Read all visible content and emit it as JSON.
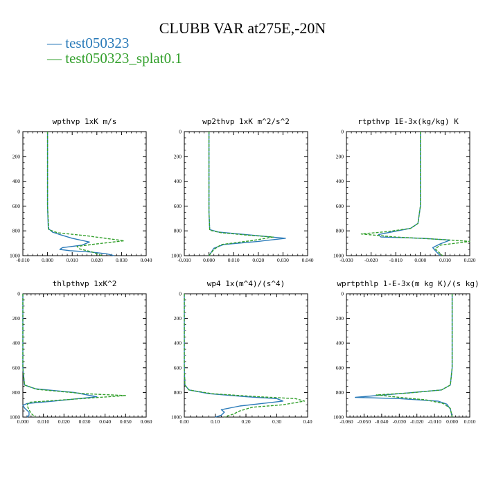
{
  "title": "CLUBB VAR at275E,-20N",
  "legend": [
    {
      "label": "test050323",
      "color": "#2b7bb9",
      "dash": false
    },
    {
      "label": "test050323_splat0.1",
      "color": "#33a02c",
      "dash": true
    }
  ],
  "chart_data": [
    {
      "type": "line",
      "title": "wpthvp  1xK m/s",
      "xlim": [
        -0.01,
        0.04
      ],
      "ylim": [
        0,
        1000
      ],
      "xticks": [
        "-0.010",
        "0.000",
        "0.010",
        "0.020",
        "0.030",
        "0.040"
      ],
      "yticks": [
        "0",
        "200",
        "400",
        "600",
        "800",
        "1000"
      ],
      "series": [
        {
          "name": "test050323",
          "x": [
            0,
            0,
            0.0003,
            0.002,
            0.005,
            0.01,
            0.017,
            0.014,
            0.006,
            0.005,
            0.009,
            0.017,
            0.024,
            0.027
          ],
          "y": [
            0,
            600,
            780,
            810,
            830,
            860,
            890,
            915,
            935,
            950,
            960,
            970,
            985,
            1000
          ]
        },
        {
          "name": "test050323_splat0.1",
          "x": [
            0,
            0,
            0.0005,
            0.004,
            0.016,
            0.031,
            0.02,
            0.012,
            0.013,
            0.018,
            0.022
          ],
          "y": [
            0,
            600,
            790,
            815,
            840,
            880,
            905,
            925,
            945,
            970,
            1000
          ]
        }
      ]
    },
    {
      "type": "line",
      "title": "wp2thvp  1xK m^2/s^2",
      "xlim": [
        -0.01,
        0.04
      ],
      "ylim": [
        0,
        1000
      ],
      "xticks": [
        "-0.010",
        "0.000",
        "0.010",
        "0.020",
        "0.030",
        "0.040"
      ],
      "yticks": [
        "0",
        "200",
        "400",
        "600",
        "800",
        "1000"
      ],
      "series": [
        {
          "name": "test050323",
          "x": [
            0,
            0,
            0.0003,
            0.004,
            0.015,
            0.031,
            0.02,
            0.006,
            0.002,
            0.001,
            0.0
          ],
          "y": [
            0,
            650,
            790,
            810,
            830,
            860,
            885,
            910,
            940,
            970,
            1000
          ]
        },
        {
          "name": "test050323_splat0.1",
          "x": [
            0,
            0,
            0.0003,
            0.005,
            0.016,
            0.026,
            0.017,
            0.005,
            0.002,
            0.0
          ],
          "y": [
            0,
            650,
            795,
            815,
            835,
            850,
            880,
            910,
            950,
            1000
          ]
        }
      ]
    },
    {
      "type": "line",
      "title": "rtpthvp  1E-3x(kg/kg) K",
      "xlim": [
        -0.03,
        0.02
      ],
      "ylim": [
        0,
        1000
      ],
      "xticks": [
        "-0.030",
        "-0.020",
        "-0.010",
        "0.000",
        "0.010",
        "0.020"
      ],
      "yticks": [
        "0",
        "200",
        "400",
        "600",
        "800",
        "1000"
      ],
      "series": [
        {
          "name": "test050323",
          "x": [
            0,
            0,
            -0.001,
            -0.004,
            -0.012,
            -0.017,
            -0.016,
            0.001,
            0.012,
            0.008,
            0.005,
            0.006,
            0.008
          ],
          "y": [
            0,
            600,
            740,
            780,
            810,
            830,
            850,
            860,
            875,
            905,
            935,
            960,
            1000
          ]
        },
        {
          "name": "test050323_splat0.1",
          "x": [
            0,
            0,
            -0.001,
            -0.004,
            -0.013,
            -0.024,
            -0.01,
            0.009,
            0.02,
            0.008,
            0.006,
            0.007,
            0.009
          ],
          "y": [
            0,
            600,
            740,
            780,
            805,
            825,
            850,
            870,
            885,
            915,
            945,
            965,
            1000
          ]
        }
      ]
    },
    {
      "type": "line",
      "title": "thlpthvp  1xK^2",
      "xlim": [
        0,
        0.06
      ],
      "ylim": [
        0,
        1000
      ],
      "xticks": [
        "0.000",
        "0.010",
        "0.020",
        "0.030",
        "0.040",
        "0.050",
        "0.060"
      ],
      "yticks": [
        "0",
        "200",
        "400",
        "600",
        "800",
        "1000"
      ],
      "series": [
        {
          "name": "test050323",
          "x": [
            0,
            0,
            0.0008,
            0.006,
            0.025,
            0.036,
            0.015,
            0.002,
            0.0,
            0.001,
            0.003,
            0.003,
            0.002
          ],
          "y": [
            0,
            600,
            740,
            770,
            800,
            835,
            870,
            890,
            905,
            930,
            960,
            985,
            1000
          ]
        },
        {
          "name": "test050323_splat0.1",
          "x": [
            0,
            0,
            0.0008,
            0.007,
            0.03,
            0.05,
            0.02,
            0.003,
            0.002,
            0.003,
            0.004,
            0.006
          ],
          "y": [
            0,
            600,
            740,
            775,
            810,
            825,
            860,
            880,
            905,
            940,
            970,
            1000
          ]
        }
      ]
    },
    {
      "type": "line",
      "title": "wp4  1x(m^4)/(s^4)",
      "xlim": [
        0,
        0.4
      ],
      "ylim": [
        0,
        1000
      ],
      "xticks": [
        "0.00",
        "0.10",
        "0.20",
        "0.30",
        "0.40"
      ],
      "yticks": [
        "0",
        "200",
        "400",
        "600",
        "800",
        "1000"
      ],
      "series": [
        {
          "name": "test050323",
          "x": [
            0,
            0,
            0.002,
            0.015,
            0.08,
            0.2,
            0.3,
            0.32,
            0.18,
            0.12,
            0.13,
            0.12,
            0.1
          ],
          "y": [
            0,
            600,
            740,
            780,
            810,
            835,
            850,
            870,
            910,
            940,
            960,
            985,
            1000
          ]
        },
        {
          "name": "test050323_splat0.1",
          "x": [
            0,
            0,
            0.002,
            0.015,
            0.09,
            0.24,
            0.36,
            0.39,
            0.32,
            0.22,
            0.18,
            0.16,
            0.13
          ],
          "y": [
            0,
            600,
            740,
            780,
            810,
            835,
            850,
            870,
            900,
            920,
            950,
            975,
            1000
          ]
        }
      ]
    },
    {
      "type": "line",
      "title": "wprtpthlp  1-E-3x(m kg K)/(s kg)",
      "xlim": [
        -0.06,
        0.01
      ],
      "ylim": [
        0,
        1000
      ],
      "xticks": [
        "-0.060",
        "-0.050",
        "-0.040",
        "-0.030",
        "-0.020",
        "-0.010",
        "0.000",
        "0.010"
      ],
      "yticks": [
        "0",
        "200",
        "400",
        "600",
        "800",
        "1000"
      ],
      "series": [
        {
          "name": "test050323",
          "x": [
            0,
            0,
            -0.001,
            -0.006,
            -0.03,
            -0.055,
            -0.03,
            -0.008,
            -0.003,
            -0.001,
            0.0
          ],
          "y": [
            0,
            600,
            740,
            780,
            810,
            840,
            850,
            870,
            895,
            935,
            1000
          ]
        },
        {
          "name": "test050323_splat0.1",
          "x": [
            0,
            0,
            -0.001,
            -0.006,
            -0.025,
            -0.043,
            -0.03,
            -0.015,
            -0.005,
            -0.001,
            0.0
          ],
          "y": [
            0,
            600,
            740,
            780,
            805,
            820,
            840,
            860,
            890,
            930,
            1000
          ]
        }
      ]
    }
  ]
}
